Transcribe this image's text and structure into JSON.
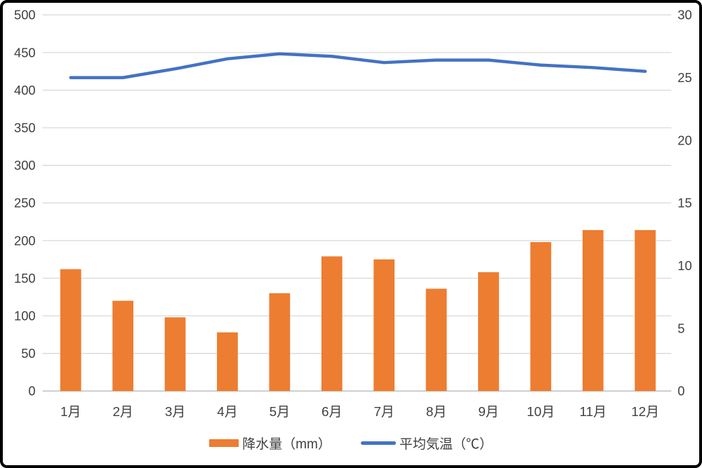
{
  "chart_data": {
    "type": "combo",
    "title": "",
    "categories": [
      "1月",
      "2月",
      "3月",
      "4月",
      "5月",
      "6月",
      "7月",
      "8月",
      "9月",
      "10月",
      "11月",
      "12月"
    ],
    "series": [
      {
        "name": "降水量（mm）",
        "chart_type": "bar",
        "axis": "left",
        "color": "#ED7D31",
        "values": [
          162,
          120,
          98,
          78,
          130,
          179,
          175,
          136,
          158,
          198,
          214,
          214
        ]
      },
      {
        "name": "平均気温（℃）",
        "chart_type": "line",
        "axis": "right",
        "color": "#4472C4",
        "values": [
          25.0,
          25.0,
          25.7,
          26.5,
          26.9,
          26.7,
          26.2,
          26.4,
          26.4,
          26.0,
          25.8,
          25.5
        ]
      }
    ],
    "left_axis": {
      "min": 0,
      "max": 500,
      "step": 50,
      "tick_labels": [
        "0",
        "50",
        "100",
        "150",
        "200",
        "250",
        "300",
        "350",
        "400",
        "450",
        "500"
      ]
    },
    "right_axis": {
      "min": 0,
      "max": 30,
      "step": 5,
      "tick_labels": [
        "0",
        "5",
        "10",
        "15",
        "20",
        "25",
        "30"
      ]
    },
    "grid": true,
    "legend_position": "bottom",
    "colors": {
      "grid": "#D9D9D9",
      "axis_line": "#C3C3C3",
      "text": "#404040",
      "background": "#FFFFFF",
      "border": "#000000"
    }
  }
}
